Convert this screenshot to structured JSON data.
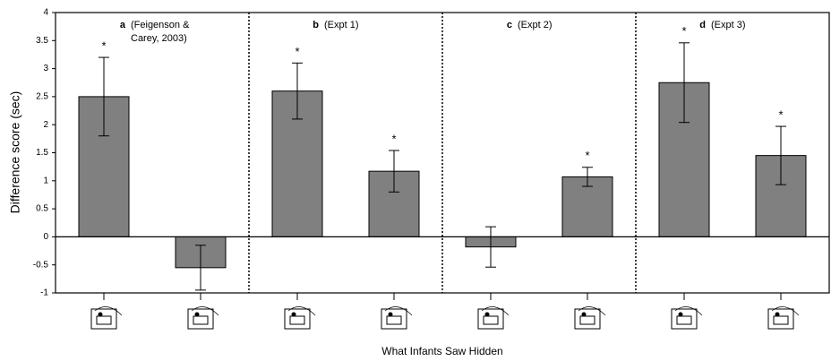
{
  "chart_data": {
    "type": "bar",
    "y_label": "Difference score (sec)",
    "x_label": "What Infants Saw Hidden",
    "categories": [
      null,
      null,
      null,
      null,
      null,
      null,
      null,
      null
    ],
    "values": [
      2.5,
      -0.55,
      2.6,
      1.17,
      -0.18,
      1.07,
      2.75,
      1.45
    ],
    "errors": [
      0.7,
      0.4,
      0.5,
      0.37,
      0.36,
      0.17,
      0.71,
      0.52
    ],
    "significance": [
      "*",
      null,
      "*",
      "*",
      null,
      "*",
      "*",
      "*"
    ],
    "panels": [
      {
        "letter": "a",
        "label_lines": [
          "(Feigenson &",
          "Carey, 2003)"
        ]
      },
      {
        "letter": "b",
        "label_lines": [
          "(Expt 1)"
        ]
      },
      {
        "letter": "c",
        "label_lines": [
          "(Expt 2)"
        ]
      },
      {
        "letter": "d",
        "label_lines": [
          "(Expt 3)"
        ]
      }
    ],
    "color": "#808080",
    "ylim": [
      -1,
      4
    ],
    "yticks": [
      -1,
      -0.5,
      0,
      0.5,
      1,
      1.5,
      2,
      2.5,
      3,
      3.5,
      4
    ]
  }
}
